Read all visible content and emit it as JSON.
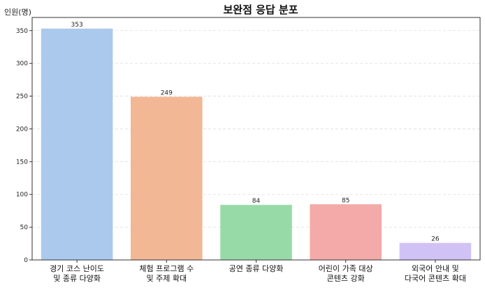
{
  "chart_data": {
    "type": "bar",
    "title": "보완점 응답 분포",
    "ylabel": "인원(명)",
    "xlabel": "",
    "categories": [
      [
        "경기 코스 난이도",
        "및 종류 다양화"
      ],
      [
        "체험 프로그램 수",
        "및 주제 확대"
      ],
      [
        "공연 종류 다양화"
      ],
      [
        "어린이 가족 대상",
        "콘텐츠 강화"
      ],
      [
        "외국어 안내 및",
        "다국어 콘텐츠 확대"
      ]
    ],
    "values": [
      353,
      249,
      84,
      85,
      26
    ],
    "colors": [
      "#abc9ed",
      "#f2b794",
      "#98d9a8",
      "#f3aaa8",
      "#d1c2f5"
    ],
    "ylim": [
      0,
      370
    ],
    "yticks": [
      0,
      50,
      100,
      150,
      200,
      250,
      300,
      350
    ],
    "grid": "y-dashed",
    "legend": "none"
  }
}
